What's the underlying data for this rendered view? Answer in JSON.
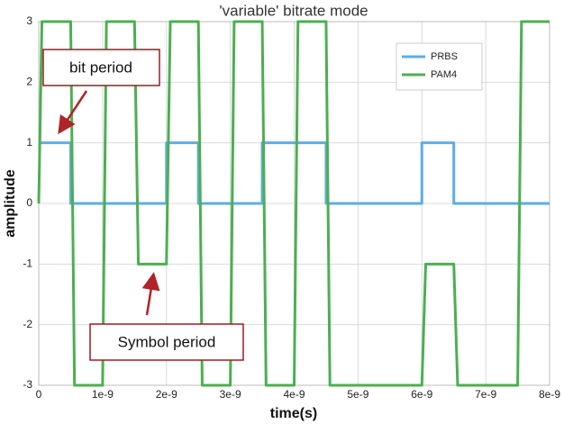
{
  "chart_data": {
    "type": "line",
    "title": "'variable' bitrate mode",
    "x_label": "time(s)",
    "y_label": "amplitude",
    "x": [
      0,
      5e-10,
      5e-10,
      2e-09,
      2e-09,
      2.5e-09,
      2.5e-09,
      3.5e-09,
      3.5e-09,
      4.5e-09,
      4.5e-09,
      6e-09,
      6e-09,
      6.5e-09,
      6.5e-09,
      8e-09
    ],
    "series": [
      {
        "name": "PRBS",
        "color": "#5dade8",
        "x": [
          0,
          5e-10,
          5e-10,
          2e-09,
          2e-09,
          2.5e-09,
          2.5e-09,
          3.5e-09,
          3.5e-09,
          4.5e-09,
          4.5e-09,
          6e-09,
          6e-09,
          6.5e-09,
          6.5e-09,
          8e-09
        ],
        "values": [
          1,
          1,
          0,
          0,
          1,
          1,
          0,
          0,
          1,
          1,
          0,
          0,
          1,
          1,
          0,
          0
        ]
      },
      {
        "name": "PAM4",
        "color": "#4caf50",
        "x": [
          0,
          5e-11,
          5e-10,
          5.6e-10,
          1e-09,
          1.06e-09,
          1.5e-09,
          1.56e-09,
          2e-09,
          2.06e-09,
          2.5e-09,
          2.56e-09,
          3e-09,
          3.06e-09,
          3.5e-09,
          3.56e-09,
          4e-09,
          4.06e-09,
          4.5e-09,
          4.56e-09,
          6e-09,
          6.06e-09,
          6.5e-09,
          6.56e-09,
          7.5e-09,
          7.56e-09,
          8e-09
        ],
        "values": [
          0,
          3,
          3,
          -3,
          -3,
          3,
          3,
          -1,
          -1,
          3,
          3,
          -3,
          -3,
          3,
          3,
          -3,
          -3,
          3,
          3,
          -3,
          -3,
          -1,
          -1,
          -3,
          -3,
          3,
          3
        ]
      }
    ],
    "xlim": [
      0,
      8e-09
    ],
    "xticks": [
      0,
      {
        "value": 1e-09,
        "label": "1e-9"
      },
      {
        "value": 2e-09,
        "label": "2e-9"
      },
      {
        "value": 3e-09,
        "label": "3e-9"
      },
      {
        "value": 4e-09,
        "label": "4e-9"
      },
      {
        "value": 5e-09,
        "label": "5e-9"
      },
      {
        "value": 6e-09,
        "label": "6e-9"
      },
      {
        "value": 7e-09,
        "label": "7e-9"
      },
      {
        "value": 8e-09,
        "label": "8e-9"
      }
    ],
    "ylim": [
      -3,
      3
    ],
    "yticks": [
      -3,
      -2,
      -1,
      0,
      1,
      2,
      3
    ],
    "grid": true,
    "legend": "upper right",
    "annotations": [
      "bit period",
      "Symbol period"
    ]
  }
}
